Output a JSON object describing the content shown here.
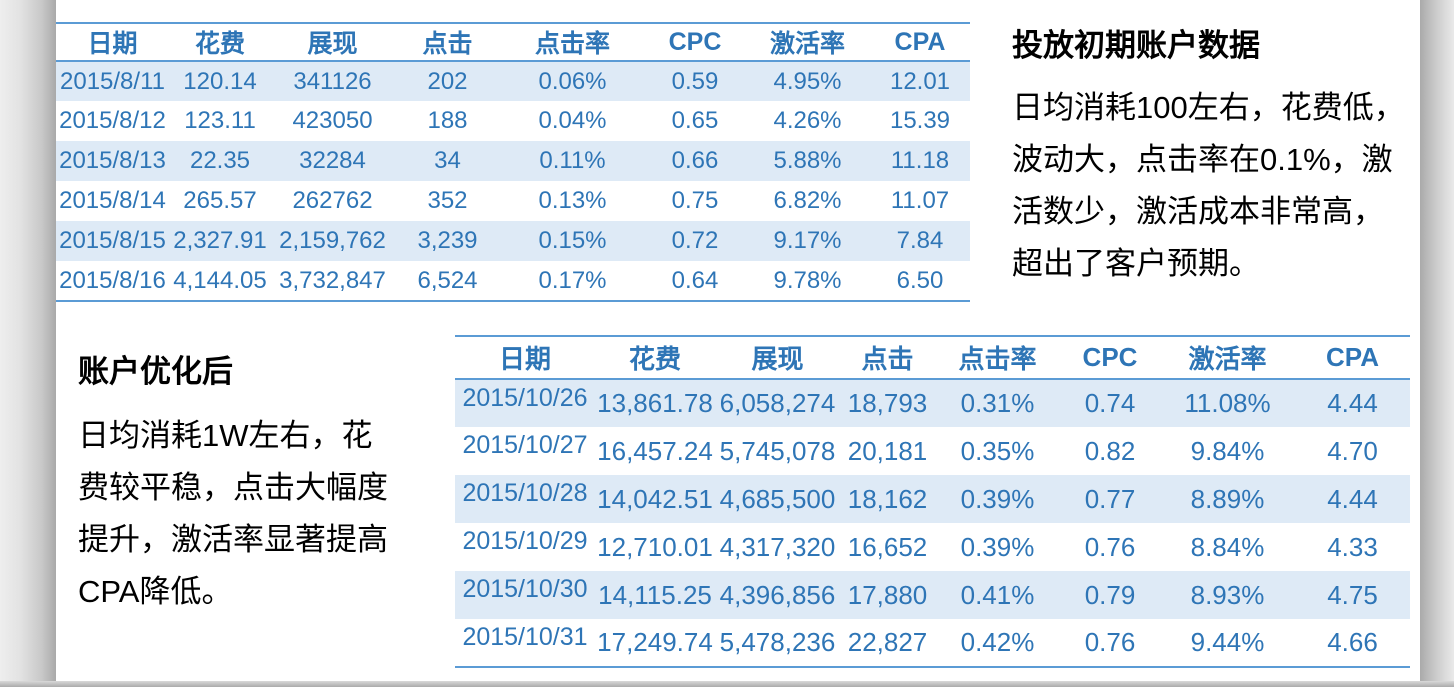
{
  "colors": {
    "table_text": "#2E75B6",
    "table_border": "#5B9BD5",
    "row_stripe": "#DEEAF6",
    "note_text": "#000000",
    "background": "#FFFFFF"
  },
  "table_initial": {
    "columns": [
      "日期",
      "花费",
      "展现",
      "点击",
      "点击率",
      "CPC",
      "激活率",
      "CPA"
    ],
    "rows": [
      [
        "2015/8/11",
        "120.14",
        "341126",
        "202",
        "0.06%",
        "0.59",
        "4.95%",
        "12.01"
      ],
      [
        "2015/8/12",
        "123.11",
        "423050",
        "188",
        "0.04%",
        "0.65",
        "4.26%",
        "15.39"
      ],
      [
        "2015/8/13",
        "22.35",
        "32284",
        "34",
        "0.11%",
        "0.66",
        "5.88%",
        "11.18"
      ],
      [
        "2015/8/14",
        "265.57",
        "262762",
        "352",
        "0.13%",
        "0.75",
        "6.82%",
        "11.07"
      ],
      [
        "2015/8/15",
        "2,327.91",
        "2,159,762",
        "3,239",
        "0.15%",
        "0.72",
        "9.17%",
        "7.84"
      ],
      [
        "2015/8/16",
        "4,144.05",
        "3,732,847",
        "6,524",
        "0.17%",
        "0.64",
        "9.78%",
        "6.50"
      ]
    ]
  },
  "table_optimized": {
    "columns": [
      "日期",
      "花费",
      "展现",
      "点击",
      "点击率",
      "CPC",
      "激活率",
      "CPA"
    ],
    "rows": [
      [
        "2015/10/26",
        "13,861.78",
        "6,058,274",
        "18,793",
        "0.31%",
        "0.74",
        "11.08%",
        "4.44"
      ],
      [
        "2015/10/27",
        "16,457.24",
        "5,745,078",
        "20,181",
        "0.35%",
        "0.82",
        "9.84%",
        "4.70"
      ],
      [
        "2015/10/28",
        "14,042.51",
        "4,685,500",
        "18,162",
        "0.39%",
        "0.77",
        "8.89%",
        "4.44"
      ],
      [
        "2015/10/29",
        "12,710.01",
        "4,317,320",
        "16,652",
        "0.39%",
        "0.76",
        "8.84%",
        "4.33"
      ],
      [
        "2015/10/30",
        "14,115.25",
        "4,396,856",
        "17,880",
        "0.41%",
        "0.79",
        "8.93%",
        "4.75"
      ],
      [
        "2015/10/31",
        "17,249.74",
        "5,478,236",
        "22,827",
        "0.42%",
        "0.76",
        "9.44%",
        "4.66"
      ]
    ]
  },
  "annotations": {
    "initial": {
      "title": "投放初期账户数据",
      "lines": [
        "日均消耗100左右，花费低，",
        "波动大，点击率在0.1%，激",
        "活数少，激活成本非常高，",
        "超出了客户预期。"
      ]
    },
    "optimized": {
      "title": "账户优化后",
      "lines": [
        "日均消耗1W左右，花",
        "费较平稳，点击大幅度",
        "提升，激活率显著提高",
        "CPA降低。"
      ]
    }
  }
}
